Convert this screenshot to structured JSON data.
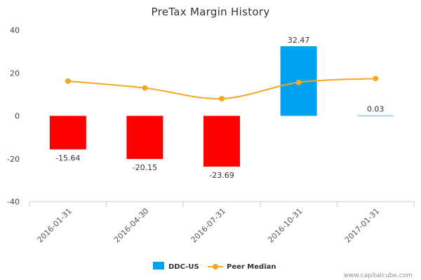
{
  "chart_data": {
    "type": "bar",
    "title": "PreTax Margin History",
    "categories": [
      "2016-01-31",
      "2016-04-30",
      "2016-07-31",
      "2016-10-31",
      "2017-01-31"
    ],
    "series": [
      {
        "name": "DDC-US",
        "type": "bar",
        "values": [
          -15.64,
          -20.15,
          -23.69,
          32.47,
          0.03
        ],
        "value_labels": [
          "-15.64",
          "-20.15",
          "-23.69",
          "32.47",
          "0.03"
        ],
        "colors": [
          "#ff0000",
          "#ff0000",
          "#ff0000",
          "#00a2ef",
          "#00a2ef"
        ]
      },
      {
        "name": "Peer Median",
        "type": "line",
        "values": [
          16.2,
          13.0,
          8.0,
          15.6,
          17.4
        ],
        "color": "#f5a623"
      }
    ],
    "ylim": [
      -40,
      40
    ],
    "yticks": [
      -40,
      -20,
      0,
      20,
      40
    ],
    "ytick_labels": [
      "-40",
      "-20",
      "0",
      "20",
      "40"
    ],
    "xlabel": "",
    "ylabel": "",
    "grid": false,
    "legend_position": "bottom-center"
  },
  "footer": {
    "credit": "www.capitalcube.com"
  }
}
